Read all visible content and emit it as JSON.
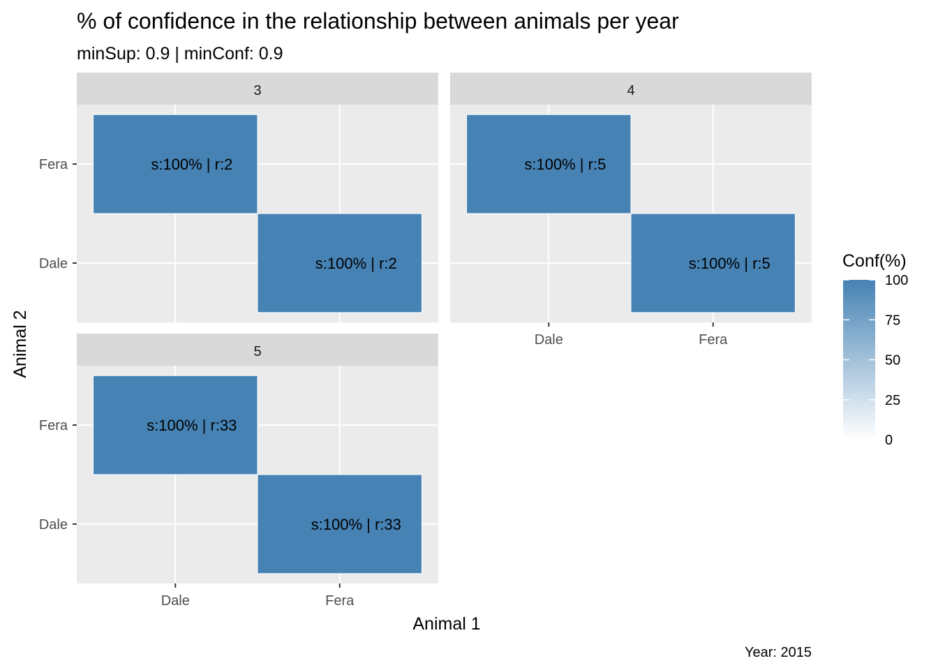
{
  "chart_data": {
    "type": "heatmap",
    "title": "% of confidence in the relationship between animals per year",
    "subtitle": "minSup: 0.9 | minConf: 0.9",
    "xlabel": "Animal 1",
    "ylabel": "Animal 2",
    "caption": "Year: 2015",
    "x_categories": [
      "Dale",
      "Fera"
    ],
    "y_categories": [
      "Dale",
      "Fera"
    ],
    "fill_color": "#4682b4",
    "low_color": "#ffffff",
    "legend": {
      "title": "Conf(%)",
      "position": "right",
      "range": [
        0,
        100
      ],
      "ticks": [
        "0",
        "25",
        "50",
        "75",
        "100"
      ]
    },
    "panels": [
      {
        "facet": "3",
        "cells": [
          {
            "x": "Dale",
            "y": "Fera",
            "conf": 100,
            "label": "s:100% | r:2"
          },
          {
            "x": "Fera",
            "y": "Dale",
            "conf": 100,
            "label": "s:100% | r:2"
          }
        ]
      },
      {
        "facet": "4",
        "cells": [
          {
            "x": "Dale",
            "y": "Fera",
            "conf": 100,
            "label": "s:100% | r:5"
          },
          {
            "x": "Fera",
            "y": "Dale",
            "conf": 100,
            "label": "s:100% | r:5"
          }
        ]
      },
      {
        "facet": "5",
        "cells": [
          {
            "x": "Dale",
            "y": "Fera",
            "conf": 100,
            "label": "s:100% | r:33"
          },
          {
            "x": "Fera",
            "y": "Dale",
            "conf": 100,
            "label": "s:100% | r:33"
          }
        ]
      }
    ]
  }
}
